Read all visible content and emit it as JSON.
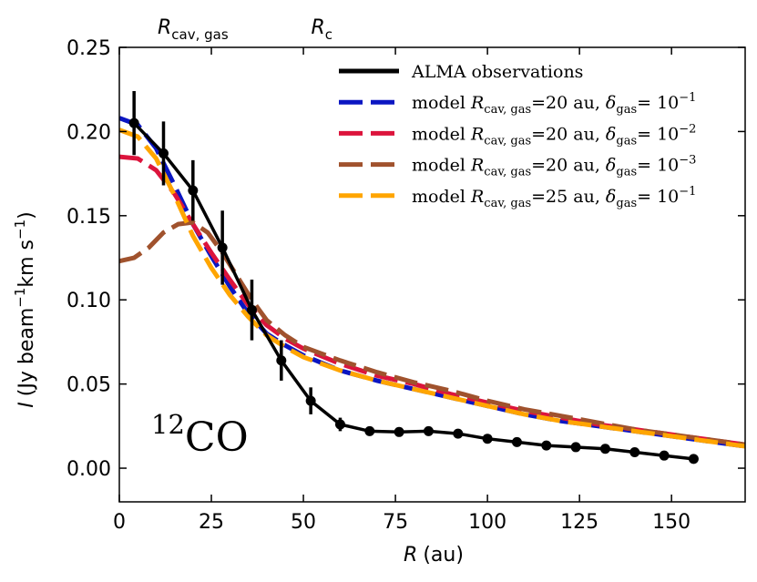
{
  "chart_data": {
    "type": "line",
    "title": "",
    "xlabel": "R (au)",
    "ylabel": "I (Jy beam⁻¹ km s⁻¹)",
    "xlim": [
      0,
      170
    ],
    "ylim": [
      -0.02,
      0.25
    ],
    "x_ticks": [
      0,
      25,
      50,
      75,
      100,
      125,
      150
    ],
    "y_ticks": [
      0.0,
      0.05,
      0.1,
      0.15,
      0.2,
      0.25
    ],
    "x_tick_labels": [
      "0",
      "25",
      "50",
      "75",
      "100",
      "125",
      "150"
    ],
    "y_tick_labels": [
      "0.00",
      "0.05",
      "0.10",
      "0.15",
      "0.20",
      "0.25"
    ],
    "ylabel_symbol": "I",
    "ylabel_unit_a": "(Jy beam",
    "ylabel_exp_a": "−1",
    "ylabel_unit_b": "km s",
    "ylabel_exp_b": "−1",
    "ylabel_close": ")",
    "xlabel_symbol": "R",
    "xlabel_unit": "(au)",
    "top_labels": [
      {
        "symbol": "R",
        "subscript": "cav, gas",
        "x": 20
      },
      {
        "symbol": "R",
        "subscript": "c",
        "x": 55
      }
    ],
    "annotation": {
      "pre": "12",
      "main": "CO"
    },
    "observations": {
      "name": "ALMA observations",
      "color": "#000000",
      "x": [
        4,
        12,
        20,
        28,
        36,
        44,
        52,
        60,
        68,
        76,
        84,
        92,
        100,
        108,
        116,
        124,
        132,
        140,
        148,
        156
      ],
      "y": [
        0.205,
        0.187,
        0.165,
        0.131,
        0.094,
        0.064,
        0.04,
        0.026,
        0.022,
        0.0215,
        0.022,
        0.0205,
        0.0175,
        0.0155,
        0.0135,
        0.0125,
        0.0115,
        0.0095,
        0.0075,
        0.0055
      ],
      "err": [
        0.019,
        0.019,
        0.018,
        0.022,
        0.018,
        0.012,
        0.008,
        0.004,
        0.002,
        0.002,
        0.002,
        0.002,
        0.002,
        0.002,
        0.002,
        0.002,
        0.002,
        0.002,
        0.002,
        0.002
      ]
    },
    "series": [
      {
        "name": "model",
        "rsym": "R",
        "rsub": "cav, gas",
        "rval": "=20 au,",
        "dsym": "δ",
        "dsub": "gas",
        "dval": "= 10",
        "dexp": "−1",
        "color": "#0b16c2",
        "x": [
          0,
          5,
          10,
          15,
          20,
          25,
          30,
          35,
          40,
          45,
          50,
          60,
          70,
          80,
          90,
          100,
          110,
          120,
          130,
          140,
          150,
          160,
          170
        ],
        "y": [
          0.208,
          0.204,
          0.19,
          0.168,
          0.145,
          0.126,
          0.108,
          0.092,
          0.08,
          0.073,
          0.067,
          0.058,
          0.052,
          0.047,
          0.042,
          0.037,
          0.032,
          0.028,
          0.025,
          0.022,
          0.019,
          0.016,
          0.013
        ]
      },
      {
        "name": "model",
        "rsym": "R",
        "rsub": "cav, gas",
        "rval": "=20 au,",
        "dsym": "δ",
        "dsub": "gas",
        "dval": "= 10",
        "dexp": "−2",
        "color": "#dc143c",
        "x": [
          0,
          5,
          10,
          15,
          20,
          25,
          30,
          35,
          40,
          45,
          50,
          60,
          70,
          80,
          90,
          100,
          110,
          120,
          130,
          140,
          150,
          160,
          170
        ],
        "y": [
          0.185,
          0.184,
          0.177,
          0.163,
          0.145,
          0.128,
          0.112,
          0.097,
          0.085,
          0.077,
          0.071,
          0.062,
          0.055,
          0.05,
          0.044,
          0.039,
          0.034,
          0.03,
          0.026,
          0.023,
          0.02,
          0.017,
          0.014
        ]
      },
      {
        "name": "model",
        "rsym": "R",
        "rsub": "cav, gas",
        "rval": "=20 au,",
        "dsym": "δ",
        "dsub": "gas",
        "dval": "= 10",
        "dexp": "−3",
        "color": "#a0522d",
        "x": [
          0,
          4,
          8,
          12,
          16,
          20,
          24,
          28,
          32,
          36,
          40,
          45,
          50,
          60,
          70,
          80,
          90,
          100,
          110,
          120,
          130,
          140,
          150,
          160,
          170
        ],
        "y": [
          0.123,
          0.125,
          0.131,
          0.14,
          0.145,
          0.146,
          0.14,
          0.128,
          0.114,
          0.1,
          0.088,
          0.079,
          0.072,
          0.064,
          0.057,
          0.051,
          0.046,
          0.04,
          0.035,
          0.031,
          0.027,
          0.023,
          0.02,
          0.017,
          0.014
        ]
      },
      {
        "name": "model",
        "rsym": "R",
        "rsub": "cav, gas",
        "rval": "=25 au,",
        "dsym": "δ",
        "dsub": "gas",
        "dval": "= 10",
        "dexp": "−1",
        "color": "#ffa500",
        "x": [
          0,
          5,
          10,
          15,
          20,
          25,
          30,
          35,
          40,
          45,
          50,
          60,
          70,
          80,
          90,
          100,
          110,
          120,
          130,
          140,
          150,
          160,
          170
        ],
        "y": [
          0.201,
          0.197,
          0.184,
          0.162,
          0.138,
          0.119,
          0.103,
          0.09,
          0.079,
          0.072,
          0.066,
          0.058,
          0.052,
          0.047,
          0.042,
          0.037,
          0.032,
          0.028,
          0.025,
          0.022,
          0.019,
          0.016,
          0.013
        ]
      }
    ],
    "grid": false,
    "legend_position": "top-right"
  }
}
